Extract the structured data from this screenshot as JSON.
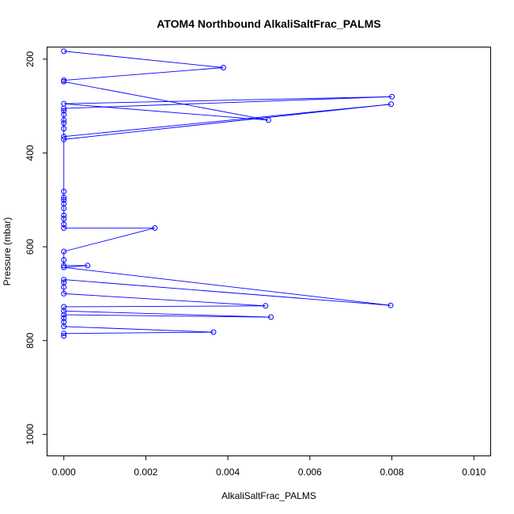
{
  "chart_data": {
    "type": "line",
    "title": "ATOM4 Northbound AlkaliSaltFrac_PALMS",
    "xlabel": "AlkaliSaltFrac_PALMS",
    "ylabel": "Pressure (mbar)",
    "xlim": [
      -0.0004,
      0.0104
    ],
    "ylim": [
      1045,
      175
    ],
    "y_inverted": true,
    "x_ticks": [
      0.0,
      0.002,
      0.004,
      0.006,
      0.008,
      0.01
    ],
    "x_tick_labels": [
      "0.000",
      "0.002",
      "0.004",
      "0.006",
      "0.008",
      "0.010"
    ],
    "y_ticks": [
      200,
      400,
      600,
      800,
      1000
    ],
    "y_tick_labels": [
      "200",
      "400",
      "600",
      "800",
      "1000"
    ],
    "grid": false,
    "legend": "none",
    "series_color": "#0000ff",
    "marker": "open-circle",
    "points": [
      [
        0.0,
        790
      ],
      [
        0.0,
        785
      ],
      [
        0.00365,
        782
      ],
      [
        0.0,
        770
      ],
      [
        0.0,
        760
      ],
      [
        0.0,
        752
      ],
      [
        0.0,
        745
      ],
      [
        0.00505,
        750
      ],
      [
        0.0,
        737
      ],
      [
        0.0,
        728
      ],
      [
        0.00492,
        726
      ],
      [
        0.0,
        700
      ],
      [
        0.0,
        686
      ],
      [
        0.0,
        676
      ],
      [
        0.0,
        670
      ],
      [
        0.00797,
        725
      ],
      [
        0.0,
        644
      ],
      [
        0.00058,
        640
      ],
      [
        0.0,
        640
      ],
      [
        0.0,
        628
      ],
      [
        0.0,
        610
      ],
      [
        0.00222,
        560
      ],
      [
        0.0,
        560
      ],
      [
        0.0,
        552
      ],
      [
        0.0,
        540
      ],
      [
        0.0,
        533
      ],
      [
        0.0,
        518
      ],
      [
        0.0,
        508
      ],
      [
        0.0,
        500
      ],
      [
        0.0,
        495
      ],
      [
        0.0,
        482
      ],
      [
        0.0,
        371
      ],
      [
        0.00798,
        296
      ],
      [
        0.0,
        365
      ],
      [
        0.0,
        348
      ],
      [
        0.0,
        336
      ],
      [
        0.0,
        330
      ],
      [
        0.0,
        318
      ],
      [
        0.0,
        310
      ],
      [
        0.0,
        305
      ],
      [
        0.008,
        280
      ],
      [
        0.0,
        295
      ],
      [
        0.00499,
        330
      ],
      [
        0.0,
        248
      ],
      [
        0.0,
        245
      ],
      [
        0.00389,
        218
      ],
      [
        0.0,
        183
      ]
    ]
  }
}
